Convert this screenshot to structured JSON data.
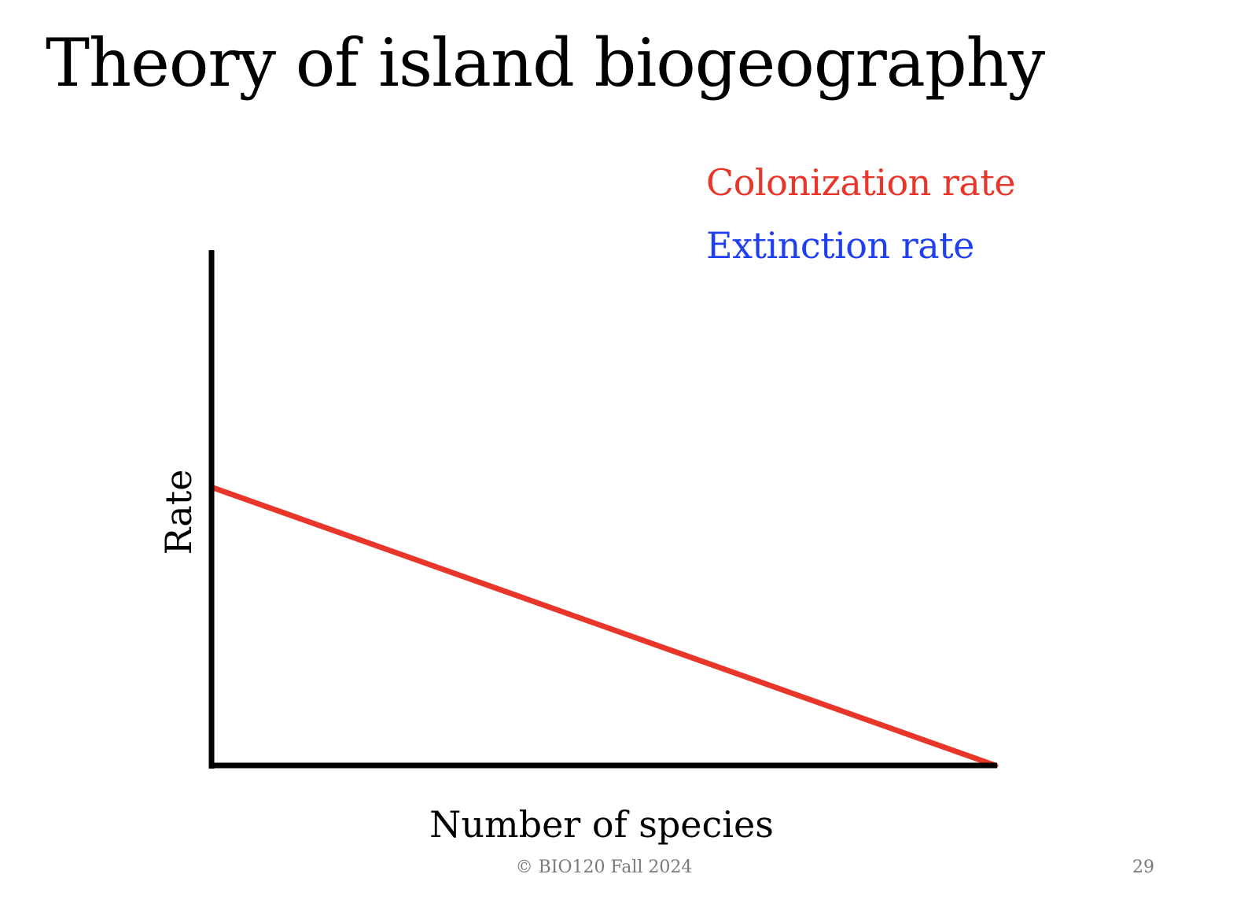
{
  "slide": {
    "title": "Theory of island biogeography",
    "footer": "© BIO120 Fall 2024",
    "page_number": "29"
  },
  "chart_data": {
    "type": "line",
    "title": "",
    "xlabel": "Number of species",
    "ylabel": "Rate",
    "xlim": [
      0,
      1
    ],
    "ylim": [
      0,
      1
    ],
    "grid": false,
    "ticks": false,
    "legend_placement": "top-right",
    "series": [
      {
        "name": "Colonization rate",
        "color": "#e8372a",
        "x": [
          0,
          1
        ],
        "y": [
          0.54,
          0
        ]
      }
    ],
    "legend_entries": [
      {
        "label": "Colonization rate",
        "color": "#e8372a"
      },
      {
        "label": "Extinction rate",
        "color": "#1f3ff0"
      }
    ]
  }
}
